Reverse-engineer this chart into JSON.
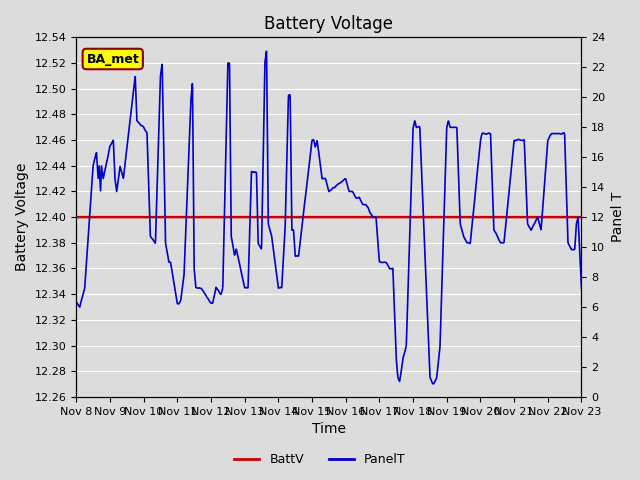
{
  "title": "Battery Voltage",
  "xlabel": "Time",
  "ylabel_left": "Battery Voltage",
  "ylabel_right": "Panel T",
  "background_color": "#dcdcdc",
  "plot_bg_color": "#dcdcdc",
  "left_ylim": [
    12.26,
    12.54
  ],
  "right_ylim": [
    0,
    24
  ],
  "left_yticks": [
    12.26,
    12.28,
    12.3,
    12.32,
    12.34,
    12.36,
    12.38,
    12.4,
    12.42,
    12.44,
    12.46,
    12.48,
    12.5,
    12.52,
    12.54
  ],
  "right_yticks": [
    0,
    2,
    4,
    6,
    8,
    10,
    12,
    14,
    16,
    18,
    20,
    22,
    24
  ],
  "xtick_labels": [
    "Nov 8",
    "Nov 9",
    "Nov 10",
    "Nov 11",
    "Nov 12",
    "Nov 13",
    "Nov 14",
    "Nov 15",
    "Nov 16",
    "Nov 17",
    "Nov 18",
    "Nov 19",
    "Nov 20",
    "Nov 21",
    "Nov 22",
    "Nov 23"
  ],
  "battv_value": 12.4,
  "battv_color": "#cc0000",
  "panel_color": "#0000cc",
  "legend_label_battv": "BattV",
  "legend_label_panel": "PanelT",
  "annotation_text": "BA_met",
  "annotation_bg": "#ffff00",
  "annotation_border": "#8B0000",
  "title_fontsize": 12,
  "axis_label_fontsize": 10,
  "tick_fontsize": 8,
  "grid_color": "#ffffff",
  "n_days": 15
}
